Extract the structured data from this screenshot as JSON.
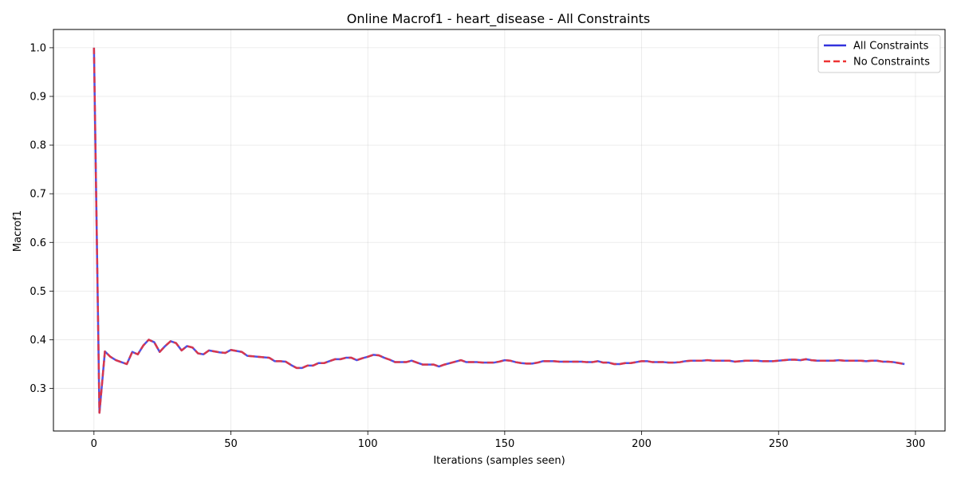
{
  "chart_data": {
    "type": "line",
    "title": "Online Macrof1 - heart_disease - All Constraints",
    "xlabel": "Iterations (samples seen)",
    "ylabel": "Macrof1",
    "xlim": [
      -14.8,
      310.8
    ],
    "ylim": [
      0.2125,
      1.0375
    ],
    "xticks": [
      0,
      50,
      100,
      150,
      200,
      250,
      300
    ],
    "yticks": [
      0.3,
      0.4,
      0.5,
      0.6,
      0.7,
      0.8,
      0.9,
      1.0
    ],
    "xtick_labels": [
      "0",
      "50",
      "100",
      "150",
      "200",
      "250",
      "300"
    ],
    "ytick_labels": [
      "0.3",
      "0.4",
      "0.5",
      "0.6",
      "0.7",
      "0.8",
      "0.9",
      "1.0"
    ],
    "grid": true,
    "legend_position": "top-right",
    "colors": {
      "all_constraints": "#3333dd",
      "no_constraints": "#ee3333"
    },
    "x": [
      0,
      2,
      4,
      6,
      8,
      10,
      12,
      14,
      16,
      18,
      20,
      22,
      24,
      26,
      28,
      30,
      32,
      34,
      36,
      38,
      40,
      42,
      44,
      46,
      48,
      50,
      52,
      54,
      56,
      58,
      60,
      62,
      64,
      66,
      68,
      70,
      72,
      74,
      76,
      78,
      80,
      82,
      84,
      86,
      88,
      90,
      92,
      94,
      96,
      98,
      100,
      102,
      104,
      106,
      108,
      110,
      112,
      114,
      116,
      118,
      120,
      122,
      124,
      126,
      128,
      130,
      132,
      134,
      136,
      138,
      140,
      142,
      144,
      146,
      148,
      150,
      152,
      154,
      156,
      158,
      160,
      162,
      164,
      166,
      168,
      170,
      172,
      174,
      176,
      178,
      180,
      182,
      184,
      186,
      188,
      190,
      192,
      194,
      196,
      198,
      200,
      202,
      204,
      206,
      208,
      210,
      212,
      214,
      216,
      218,
      220,
      222,
      224,
      226,
      228,
      230,
      232,
      234,
      236,
      238,
      240,
      242,
      244,
      246,
      248,
      250,
      252,
      254,
      256,
      258,
      260,
      262,
      264,
      266,
      268,
      270,
      272,
      274,
      276,
      278,
      280,
      282,
      284,
      286,
      288,
      290,
      292,
      294,
      296
    ],
    "series": [
      {
        "name": "All Constraints",
        "style": "solid",
        "values": [
          1.0,
          0.25,
          0.376,
          0.365,
          0.358,
          0.354,
          0.35,
          0.375,
          0.37,
          0.388,
          0.4,
          0.395,
          0.375,
          0.387,
          0.397,
          0.393,
          0.378,
          0.387,
          0.384,
          0.372,
          0.37,
          0.378,
          0.376,
          0.374,
          0.373,
          0.379,
          0.377,
          0.375,
          0.367,
          0.366,
          0.365,
          0.364,
          0.363,
          0.356,
          0.356,
          0.355,
          0.348,
          0.342,
          0.342,
          0.347,
          0.347,
          0.352,
          0.352,
          0.356,
          0.36,
          0.36,
          0.363,
          0.363,
          0.358,
          0.362,
          0.365,
          0.369,
          0.368,
          0.363,
          0.359,
          0.354,
          0.354,
          0.354,
          0.357,
          0.353,
          0.349,
          0.349,
          0.349,
          0.345,
          0.349,
          0.352,
          0.355,
          0.358,
          0.354,
          0.354,
          0.354,
          0.353,
          0.353,
          0.353,
          0.355,
          0.358,
          0.357,
          0.354,
          0.352,
          0.351,
          0.351,
          0.353,
          0.356,
          0.356,
          0.356,
          0.355,
          0.355,
          0.355,
          0.355,
          0.355,
          0.354,
          0.354,
          0.356,
          0.353,
          0.353,
          0.35,
          0.35,
          0.352,
          0.352,
          0.354,
          0.356,
          0.356,
          0.354,
          0.354,
          0.354,
          0.353,
          0.353,
          0.354,
          0.356,
          0.357,
          0.357,
          0.357,
          0.358,
          0.357,
          0.357,
          0.357,
          0.357,
          0.355,
          0.356,
          0.357,
          0.357,
          0.357,
          0.356,
          0.356,
          0.356,
          0.357,
          0.358,
          0.359,
          0.359,
          0.358,
          0.36,
          0.358,
          0.357,
          0.357,
          0.357,
          0.357,
          0.358,
          0.357,
          0.357,
          0.357,
          0.357,
          0.356,
          0.357,
          0.357,
          0.355,
          0.355,
          0.354,
          0.352,
          0.35
        ]
      },
      {
        "name": "No Constraints",
        "style": "dashed",
        "values": [
          1.0,
          0.25,
          0.376,
          0.365,
          0.358,
          0.354,
          0.35,
          0.375,
          0.37,
          0.388,
          0.4,
          0.395,
          0.375,
          0.387,
          0.397,
          0.393,
          0.378,
          0.387,
          0.384,
          0.372,
          0.37,
          0.378,
          0.376,
          0.374,
          0.373,
          0.379,
          0.377,
          0.375,
          0.367,
          0.366,
          0.365,
          0.364,
          0.363,
          0.356,
          0.356,
          0.355,
          0.348,
          0.342,
          0.342,
          0.347,
          0.347,
          0.352,
          0.352,
          0.356,
          0.36,
          0.36,
          0.363,
          0.363,
          0.358,
          0.362,
          0.365,
          0.369,
          0.368,
          0.363,
          0.359,
          0.354,
          0.354,
          0.354,
          0.357,
          0.353,
          0.349,
          0.349,
          0.349,
          0.345,
          0.349,
          0.352,
          0.355,
          0.358,
          0.354,
          0.354,
          0.354,
          0.353,
          0.353,
          0.353,
          0.355,
          0.358,
          0.357,
          0.354,
          0.352,
          0.351,
          0.351,
          0.353,
          0.356,
          0.356,
          0.356,
          0.355,
          0.355,
          0.355,
          0.355,
          0.355,
          0.354,
          0.354,
          0.356,
          0.353,
          0.353,
          0.35,
          0.35,
          0.352,
          0.352,
          0.354,
          0.356,
          0.356,
          0.354,
          0.354,
          0.354,
          0.353,
          0.353,
          0.354,
          0.356,
          0.357,
          0.357,
          0.357,
          0.358,
          0.357,
          0.357,
          0.357,
          0.357,
          0.355,
          0.356,
          0.357,
          0.357,
          0.357,
          0.356,
          0.356,
          0.356,
          0.357,
          0.358,
          0.359,
          0.359,
          0.358,
          0.36,
          0.358,
          0.357,
          0.357,
          0.357,
          0.357,
          0.358,
          0.357,
          0.357,
          0.357,
          0.357,
          0.356,
          0.357,
          0.357,
          0.355,
          0.355,
          0.354,
          0.352,
          0.35
        ]
      }
    ]
  }
}
